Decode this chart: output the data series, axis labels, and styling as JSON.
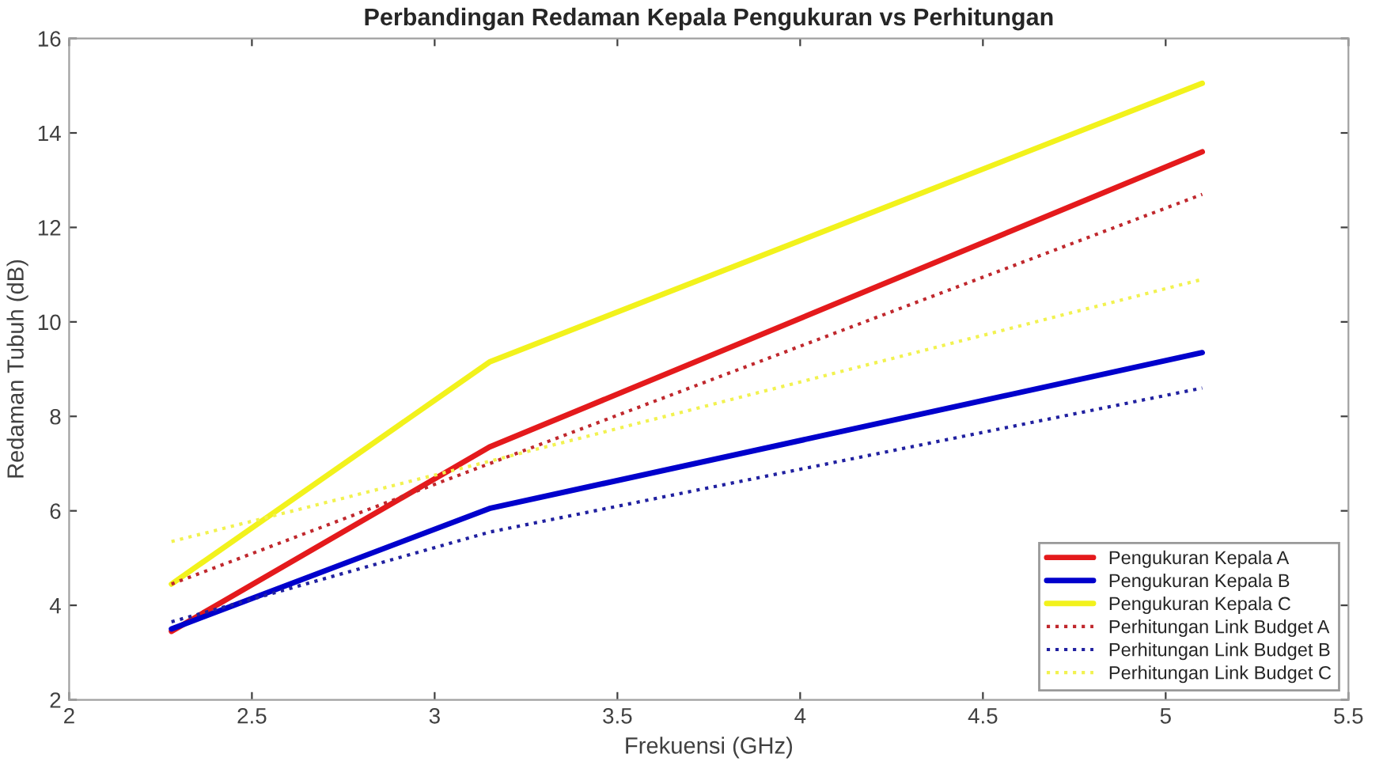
{
  "chart_data": {
    "type": "line",
    "title": "Perbandingan Redaman Kepala Pengukuran vs Perhitungan",
    "xlabel": "Frekuensi (GHz)",
    "ylabel": "Redaman Tubuh (dB)",
    "x": [
      2.28,
      3.15,
      5.1
    ],
    "series": [
      {
        "name": "Pengukuran Kepala A",
        "color": "#e41a1c",
        "values": [
          3.45,
          7.35,
          13.6
        ],
        "line_style": "solid"
      },
      {
        "name": "Pengukuran Kepala B",
        "color": "#0000cc",
        "values": [
          3.5,
          6.05,
          9.35
        ],
        "line_style": "solid"
      },
      {
        "name": "Pengukuran Kepala C",
        "color": "#f2f21c",
        "values": [
          4.45,
          9.15,
          15.05
        ],
        "line_style": "solid"
      },
      {
        "name": "Perhitungan Link Budget A",
        "color": "#c0282d",
        "values": [
          4.45,
          7.0,
          12.7
        ],
        "line_style": "dotted"
      },
      {
        "name": "Perhitungan Link Budget B",
        "color": "#2020a0",
        "values": [
          3.65,
          5.55,
          8.6
        ],
        "line_style": "dotted"
      },
      {
        "name": "Perhitungan Link Budget C",
        "color": "#f2f250",
        "values": [
          5.35,
          7.05,
          10.9
        ],
        "line_style": "dotted"
      }
    ],
    "xlim": [
      2,
      5.5
    ],
    "xticks": [
      2,
      2.5,
      3,
      3.5,
      4,
      4.5,
      5,
      5.5
    ],
    "ylim": [
      2,
      16
    ],
    "yticks": [
      2,
      4,
      6,
      8,
      10,
      12,
      14,
      16
    ],
    "grid": false,
    "legend": "bottom right"
  }
}
